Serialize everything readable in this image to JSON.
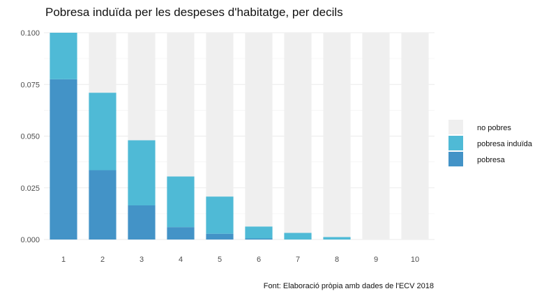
{
  "chart_data": {
    "type": "bar",
    "stacked": true,
    "title": "Pobresa induïda per les despeses d'habitatge, per decils",
    "caption": "Font: Elaboració pròpia amb dades de l'ECV 2018",
    "xlabel": "",
    "ylabel": "",
    "categories": [
      "1",
      "2",
      "3",
      "4",
      "5",
      "6",
      "7",
      "8",
      "9",
      "10"
    ],
    "ylim": [
      0,
      0.1
    ],
    "yticks": [
      "0.000",
      "0.025",
      "0.050",
      "0.075",
      "0.100"
    ],
    "ytick_values": [
      0,
      0.025,
      0.05,
      0.075,
      0.1
    ],
    "grid": true,
    "legend_position": "right",
    "series": [
      {
        "name": "pobresa",
        "color": "#4393c7",
        "values": [
          0.0775,
          0.0335,
          0.0165,
          0.006,
          0.0028,
          0.0005,
          0.0,
          0.0,
          0.0,
          0.0
        ]
      },
      {
        "name": "pobresa induïda",
        "color": "#4fbad6",
        "values": [
          0.0225,
          0.0375,
          0.0315,
          0.0245,
          0.018,
          0.0058,
          0.0032,
          0.0012,
          0.0,
          0.0
        ]
      },
      {
        "name": "no pobres",
        "color": "#efefef",
        "values": [
          0.0,
          0.029,
          0.052,
          0.0695,
          0.0792,
          0.0937,
          0.0968,
          0.0988,
          0.1,
          0.1
        ]
      }
    ],
    "legend_order": [
      "no pobres",
      "pobresa induïda",
      "pobresa"
    ]
  }
}
